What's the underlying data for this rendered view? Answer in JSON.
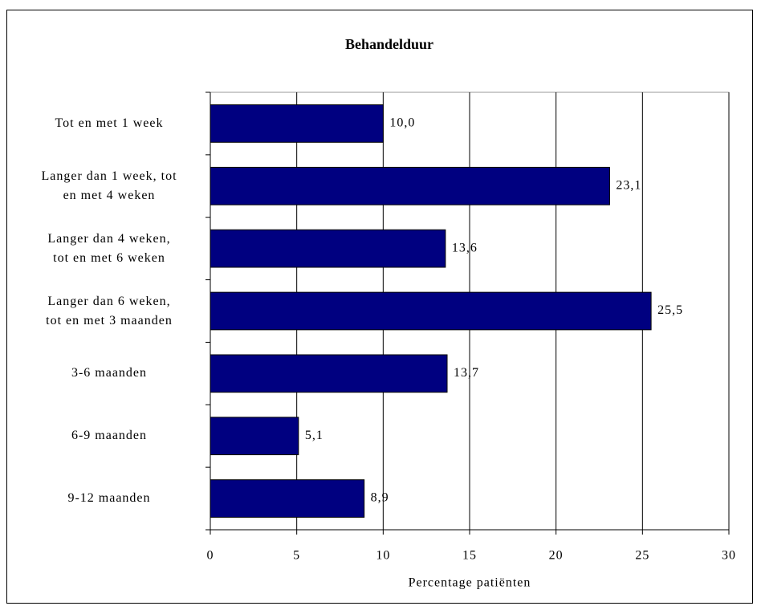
{
  "chart_data": {
    "type": "bar",
    "orientation": "horizontal",
    "title": "Behandelduur",
    "x_label": "Percentage patiënten",
    "categories": [
      "Tot en met 1 week",
      "Langer dan 1 week, tot\nen met 4 weken",
      "Langer dan 4 weken,\ntot en met 6 weken",
      "Langer dan 6 weken,\ntot en met 3 maanden",
      "3-6 maanden",
      "6-9 maanden",
      "9-12 maanden"
    ],
    "values": [
      10.0,
      23.1,
      13.6,
      25.5,
      13.7,
      5.1,
      8.9
    ],
    "value_labels": [
      "10,0",
      "23,1",
      "13,6",
      "25,5",
      "13,7",
      "5,1",
      "8,9"
    ],
    "color": "#000080",
    "xlim": [
      0,
      30
    ],
    "xticks": [
      0,
      5,
      10,
      15,
      20,
      25,
      30
    ],
    "grid": true
  }
}
